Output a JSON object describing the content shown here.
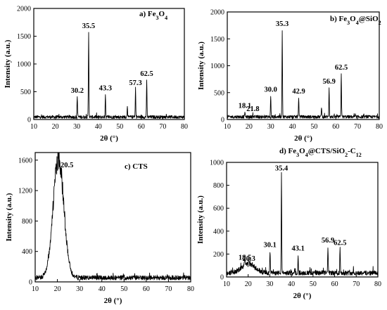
{
  "chart_data": [
    {
      "type": "line",
      "label": [
        "a) Fe",
        "3",
        "O",
        "4",
        ""
      ],
      "xlabel": "2θ (°)",
      "ylabel": "Intensity (a.u.)",
      "xlim": [
        10,
        80
      ],
      "ylim": [
        0,
        2000
      ],
      "xticks": [
        10,
        20,
        30,
        40,
        50,
        60,
        70,
        80
      ],
      "yticks": [
        0,
        500,
        1000,
        1500,
        2000
      ],
      "baseline": 45,
      "noise": 55,
      "peaks": [
        {
          "x": 30.2,
          "y": 420,
          "label": "30.2"
        },
        {
          "x": 35.5,
          "y": 1580,
          "label": "35.5"
        },
        {
          "x": 43.3,
          "y": 460,
          "label": "43.3"
        },
        {
          "x": 53.5,
          "y": 260,
          "label": ""
        },
        {
          "x": 57.3,
          "y": 560,
          "label": "57.3"
        },
        {
          "x": 62.5,
          "y": 720,
          "label": "62.5"
        }
      ]
    },
    {
      "type": "line",
      "label": [
        "b) Fe",
        "3",
        "O",
        "4",
        "@SiO",
        "2",
        ""
      ],
      "xlabel": "2θ (°)",
      "ylabel": "Intensity (a.u.)",
      "xlim": [
        10,
        80
      ],
      "ylim": [
        0,
        2000
      ],
      "xticks": [
        10,
        20,
        30,
        40,
        50,
        60,
        70,
        80
      ],
      "yticks": [
        0,
        500,
        1000,
        1500,
        2000
      ],
      "baseline": 50,
      "noise": 55,
      "peaks": [
        {
          "x": 18.1,
          "y": 150,
          "label": "18.1"
        },
        {
          "x": 21.8,
          "y": 90,
          "label": "21.8"
        },
        {
          "x": 30.0,
          "y": 450,
          "label": "30.0"
        },
        {
          "x": 35.3,
          "y": 1670,
          "label": "35.3"
        },
        {
          "x": 42.9,
          "y": 420,
          "label": "42.9"
        },
        {
          "x": 53.4,
          "y": 240,
          "label": ""
        },
        {
          "x": 56.9,
          "y": 600,
          "label": "56.9"
        },
        {
          "x": 62.5,
          "y": 860,
          "label": "62.5"
        }
      ]
    },
    {
      "type": "line",
      "label": [
        "c) CTS"
      ],
      "xlabel": "2θ (°)",
      "ylabel": "Intensity (a.u.)",
      "xlim": [
        10,
        80
      ],
      "ylim": [
        0,
        1700
      ],
      "xticks": [
        10,
        20,
        30,
        40,
        50,
        60,
        70,
        80
      ],
      "yticks": [
        0,
        400,
        800,
        1200,
        1600
      ],
      "baseline": 55,
      "noise": 60,
      "broad_peak": {
        "x": 20.5,
        "y": 1560,
        "width": 2.4,
        "label": "20.5"
      },
      "peaks": []
    },
    {
      "type": "line",
      "label": [
        "d)  Fe",
        "3",
        "O",
        "4",
        "@CTS/SiO",
        "2",
        "-C",
        "12",
        ""
      ],
      "xlabel": "2θ (°)",
      "ylabel": "Intensity (a.u.)",
      "xlim": [
        10,
        80
      ],
      "ylim": [
        0,
        1000
      ],
      "xticks": [
        10,
        20,
        30,
        40,
        50,
        60,
        70,
        80
      ],
      "yticks": [
        0,
        200,
        400,
        600,
        800,
        1000
      ],
      "baseline": 35,
      "noise": 40,
      "broad_peak": {
        "x": 20.0,
        "y": 80,
        "width": 3.0,
        "label": ""
      },
      "peaks": [
        {
          "x": 18.5,
          "y": 120,
          "label": "18.5"
        },
        {
          "x": 20.3,
          "y": 110,
          "label": "20.3"
        },
        {
          "x": 30.1,
          "y": 230,
          "label": "30.1"
        },
        {
          "x": 35.4,
          "y": 900,
          "label": "35.4"
        },
        {
          "x": 43.1,
          "y": 200,
          "label": "43.1"
        },
        {
          "x": 56.9,
          "y": 270,
          "label": "56.9"
        },
        {
          "x": 62.5,
          "y": 250,
          "label": "62.5"
        }
      ]
    }
  ]
}
